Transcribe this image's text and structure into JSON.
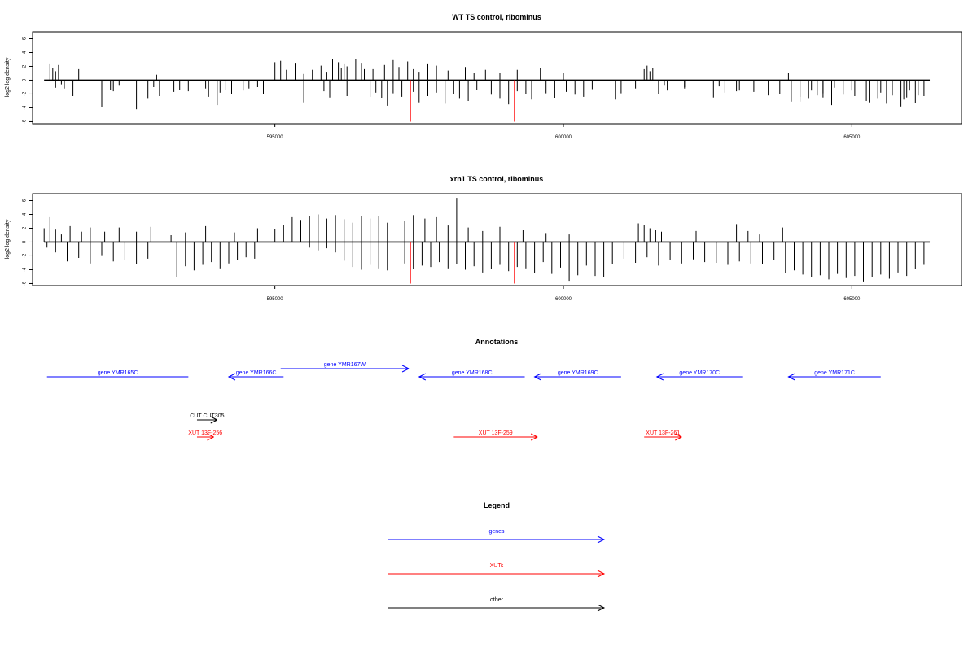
{
  "chart_data": [
    {
      "type": "bar",
      "title": "WT TS control, ribominus",
      "ylabel": "log2 log density",
      "xlabel": "",
      "xlim": [
        590800,
        606900
      ],
      "ylim": [
        -6.3,
        7
      ],
      "xticks": [
        595000,
        600000,
        605000
      ],
      "yticks": [
        -6,
        -4,
        -2,
        0,
        2,
        4,
        6
      ],
      "grid": false,
      "series": [
        {
          "name": "",
          "color": "#000000",
          "x": [
            591100,
            591150,
            591200,
            591250,
            591350,
            591600,
            592200,
            592900,
            592950,
            593800,
            594050,
            594150,
            594700,
            595000,
            595100,
            595200,
            595350,
            595500,
            595650,
            595800,
            595900,
            596000,
            596100,
            596150,
            596200,
            596250,
            596400,
            596500,
            596550,
            596700,
            596900,
            597050,
            597150,
            597300,
            597400,
            597500,
            597650,
            597800,
            598000,
            598300,
            598450,
            598650,
            598900,
            599200,
            599600,
            600000,
            600500,
            601000,
            601400,
            601450,
            601500,
            601550,
            601750,
            602100,
            602700,
            603000,
            603900,
            604100,
            604300,
            604500,
            604700,
            605000,
            605300,
            605500,
            605700,
            605900,
            606000,
            606150,
            591200,
            591300,
            591500,
            592000,
            592150,
            592300,
            592600,
            592800,
            593000,
            593250,
            593350,
            593500,
            593850,
            594000,
            594250,
            594450,
            594550,
            594800,
            595500,
            595850,
            595950,
            596250,
            596650,
            596750,
            596850,
            596950,
            597050,
            597200,
            597400,
            597500,
            597650,
            597800,
            597950,
            598100,
            598200,
            598350,
            598500,
            598750,
            598900,
            599050,
            599200,
            599350,
            599450,
            599700,
            599850,
            600050,
            600200,
            600350,
            600600,
            600900,
            601250,
            601650,
            601800,
            602100,
            602350,
            602600,
            602800,
            603050,
            603300,
            603550,
            603750,
            603950,
            604100,
            604250,
            604400,
            604500,
            604650,
            604850,
            605050,
            605250,
            605450,
            605600,
            605700,
            605850,
            605950,
            606100,
            606250
          ],
          "values": [
            2.3,
            1.8,
            1.3,
            2.2,
            -1.2,
            1.6,
            -1.6,
            -1.0,
            0.8,
            -1.2,
            -1.8,
            -1.4,
            -1.0,
            2.6,
            2.8,
            1.5,
            2.4,
            0.9,
            1.5,
            2.1,
            1.1,
            3.0,
            2.6,
            1.8,
            2.3,
            2.0,
            3.0,
            2.4,
            1.6,
            1.6,
            2.2,
            2.9,
            1.9,
            2.7,
            1.6,
            1.1,
            2.3,
            2.1,
            1.4,
            1.9,
            1.0,
            1.5,
            1.0,
            1.5,
            1.8,
            1.0,
            -1.3,
            -1.9,
            1.6,
            2.1,
            1.3,
            1.8,
            -0.8,
            -1.2,
            -0.9,
            -1.6,
            1.0,
            -2.4,
            -1.5,
            -1.9,
            -1.1,
            -1.5,
            -3.2,
            -1.8,
            -1.9,
            -2.8,
            -1.5,
            -2.2,
            -1.1,
            -0.6,
            -2.3,
            -3.9,
            -1.4,
            -0.8,
            -4.2,
            -2.7,
            -2.3,
            -1.7,
            -1.4,
            -1.6,
            -2.4,
            -3.6,
            -2.0,
            -1.5,
            -1.2,
            -2.0,
            -3.2,
            -1.6,
            -2.5,
            -2.3,
            -2.4,
            -1.8,
            -2.6,
            -3.7,
            -1.9,
            -2.4,
            -1.7,
            -3.2,
            -2.3,
            -1.8,
            -3.4,
            -2.0,
            -2.7,
            -3.0,
            -1.4,
            -2.1,
            -2.7,
            -3.5,
            -1.6,
            -2.0,
            -2.8,
            -1.9,
            -2.6,
            -1.7,
            -2.1,
            -2.4,
            -1.3,
            -2.8,
            -1.2,
            -2.0,
            -1.5,
            -1.0,
            -1.3,
            -2.5,
            -1.8,
            -1.5,
            -1.7,
            -2.2,
            -2.0,
            -3.1,
            -3.1,
            -2.7,
            -2.2,
            -2.5,
            -3.6,
            -2.1,
            -2.3,
            -3.0,
            -2.7,
            -3.4,
            -2.2,
            -3.8,
            -2.5,
            -3.3,
            -2.3
          ]
        },
        {
          "name": "",
          "color": "#ff0000",
          "x": [
            597350,
            599150
          ],
          "values": [
            -6.0,
            -6.0
          ]
        }
      ]
    },
    {
      "type": "bar",
      "title": "xrn1 TS control, ribominus",
      "ylabel": "log2 log density",
      "xlabel": "",
      "xlim": [
        590800,
        606900
      ],
      "ylim": [
        -6.3,
        7
      ],
      "xticks": [
        595000,
        600000,
        605000
      ],
      "yticks": [
        -6,
        -4,
        -2,
        0,
        2,
        4,
        6
      ],
      "grid": false,
      "series": [
        {
          "name": "",
          "color": "#000000",
          "x": [
            591000,
            591100,
            591200,
            591300,
            591450,
            591650,
            591800,
            592050,
            592300,
            592600,
            592850,
            593200,
            593450,
            593800,
            594300,
            594700,
            595000,
            595150,
            595300,
            595450,
            595600,
            595750,
            595900,
            596050,
            596200,
            596350,
            596500,
            596650,
            596800,
            596950,
            597100,
            597250,
            597400,
            597600,
            597800,
            598000,
            598150,
            598350,
            598600,
            598900,
            599300,
            599700,
            600100,
            601300,
            601400,
            601500,
            601600,
            601700,
            602300,
            603000,
            603200,
            603400,
            603800,
            591050,
            591200,
            591400,
            591600,
            591800,
            592000,
            592200,
            592400,
            592600,
            592800,
            593300,
            593450,
            593600,
            593750,
            593900,
            594050,
            594200,
            594350,
            594500,
            594650,
            595600,
            595750,
            595900,
            596050,
            596200,
            596350,
            596500,
            596650,
            596800,
            596950,
            597100,
            597250,
            597400,
            597550,
            597700,
            597850,
            598000,
            598150,
            598300,
            598450,
            598600,
            598750,
            598900,
            599050,
            599200,
            599350,
            599500,
            599650,
            599800,
            599950,
            600100,
            600250,
            600400,
            600550,
            600700,
            600850,
            601050,
            601250,
            601450,
            601650,
            601850,
            602050,
            602250,
            602450,
            602650,
            602850,
            603050,
            603250,
            603450,
            603650,
            603850,
            604000,
            604150,
            604300,
            604450,
            604600,
            604750,
            604900,
            605050,
            605200,
            605350,
            605500,
            605650,
            605800,
            605950,
            606100,
            606250
          ],
          "values": [
            2.0,
            3.6,
            1.8,
            1.1,
            2.3,
            1.5,
            2.1,
            1.5,
            2.1,
            1.5,
            2.2,
            1.0,
            1.4,
            2.3,
            1.4,
            2.0,
            1.9,
            2.5,
            3.6,
            3.2,
            3.8,
            4.0,
            3.4,
            3.9,
            3.3,
            2.8,
            3.8,
            3.4,
            3.7,
            2.8,
            3.5,
            3.1,
            3.9,
            3.4,
            3.6,
            2.4,
            6.4,
            2.1,
            1.6,
            2.2,
            1.7,
            1.3,
            1.1,
            2.7,
            2.5,
            2.0,
            1.7,
            1.5,
            1.6,
            2.6,
            1.6,
            1.1,
            2.1,
            -0.8,
            -1.5,
            -2.8,
            -2.3,
            -3.1,
            -1.9,
            -2.8,
            -2.6,
            -3.2,
            -2.4,
            -5.0,
            -3.5,
            -4.1,
            -3.3,
            -2.9,
            -3.8,
            -3.1,
            -2.6,
            -2.2,
            -2.4,
            -0.8,
            -1.2,
            -0.9,
            -1.5,
            -2.7,
            -3.6,
            -4.0,
            -3.3,
            -3.8,
            -4.1,
            -3.5,
            -3.1,
            -3.9,
            -3.4,
            -3.6,
            -2.9,
            -3.8,
            -3.2,
            -4.0,
            -3.5,
            -4.4,
            -3.9,
            -3.3,
            -4.2,
            -3.6,
            -3.8,
            -4.5,
            -2.9,
            -4.6,
            -3.7,
            -5.6,
            -4.8,
            -3.4,
            -4.9,
            -5.1,
            -3.2,
            -2.4,
            -3.0,
            -2.2,
            -3.4,
            -2.6,
            -3.1,
            -2.5,
            -2.9,
            -3.0,
            -3.3,
            -2.8,
            -3.1,
            -3.2,
            -2.6,
            -4.5,
            -4.1,
            -4.7,
            -5.1,
            -4.8,
            -5.4,
            -4.6,
            -5.2,
            -4.9,
            -5.7,
            -5.0,
            -4.7,
            -5.3,
            -4.4,
            -4.9,
            -3.9,
            -3.3
          ]
        },
        {
          "name": "",
          "color": "#ff0000",
          "x": [
            597350,
            599150
          ],
          "values": [
            -6.0,
            -6.0
          ]
        }
      ]
    }
  ],
  "annotations": {
    "title": "Annotations",
    "features": [
      {
        "label": "gene YMR165C",
        "type": "gene",
        "dir": "none",
        "start": 591050,
        "end": 593500
      },
      {
        "label": "gene YMR166C",
        "type": "gene",
        "dir": "left",
        "start": 594200,
        "end": 595150
      },
      {
        "label": "gene YMR167W",
        "type": "gene",
        "dir": "right",
        "start": 595100,
        "end": 597320
      },
      {
        "label": "gene YMR168C",
        "type": "gene",
        "dir": "left",
        "start": 597500,
        "end": 599330
      },
      {
        "label": "gene YMR169C",
        "type": "gene",
        "dir": "left",
        "start": 599500,
        "end": 601000
      },
      {
        "label": "gene YMR170C",
        "type": "gene",
        "dir": "left",
        "start": 601620,
        "end": 603100
      },
      {
        "label": "gene YMR171C",
        "type": "gene",
        "dir": "left",
        "start": 603900,
        "end": 605500
      },
      {
        "label": "CUT CUT305",
        "type": "other",
        "dir": "right",
        "start": 593650,
        "end": 594000
      },
      {
        "label": "XUT 13F-256",
        "type": "xut",
        "dir": "right",
        "start": 593650,
        "end": 593940
      },
      {
        "label": "XUT 13F-259",
        "type": "xut",
        "dir": "right",
        "start": 598100,
        "end": 599550
      },
      {
        "label": "XUT 13F-261",
        "type": "xut",
        "dir": "right",
        "start": 601400,
        "end": 602050
      }
    ]
  },
  "legend": {
    "title": "Legend",
    "items": [
      {
        "label": "genes",
        "color": "#0000ff"
      },
      {
        "label": "XUTs",
        "color": "#ff0000"
      },
      {
        "label": "other",
        "color": "#000000"
      }
    ]
  },
  "colors": {
    "gene": "#0000ff",
    "xut": "#ff0000",
    "other": "#000000"
  }
}
